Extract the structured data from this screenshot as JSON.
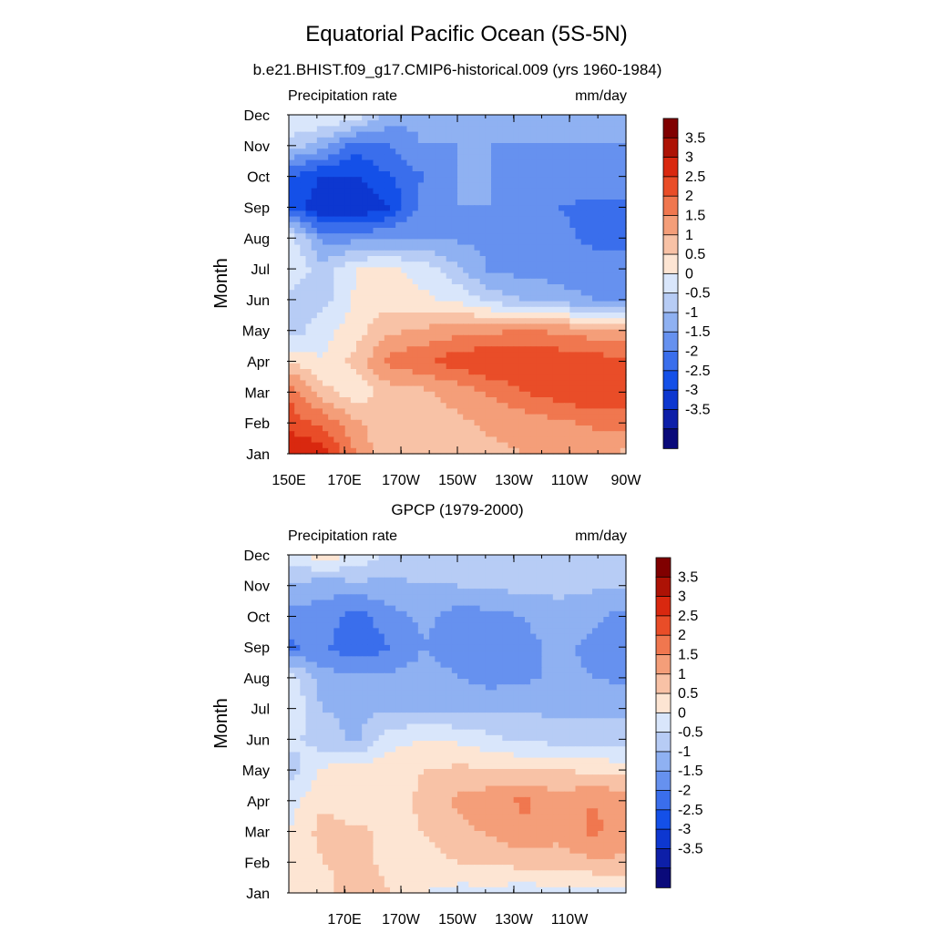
{
  "figure": {
    "title": "Equatorial Pacific Ocean (5S-5N)"
  },
  "colorbar": {
    "levels": [
      -3.5,
      -3,
      -2.5,
      -2,
      -1.5,
      -1,
      -0.5,
      0,
      0.5,
      1,
      1.5,
      2,
      2.5,
      3,
      3.5
    ],
    "labels": [
      "3.5",
      "3",
      "2.5",
      "2",
      "1.5",
      "1",
      "0.5",
      "0",
      "-0.5",
      "-1",
      "-1.5",
      "-2",
      "-2.5",
      "-3",
      "-3.5"
    ],
    "colors": [
      "#0a0a7a",
      "#0d1fa8",
      "#0d37d0",
      "#1450e8",
      "#3a6eec",
      "#6691ef",
      "#8fb1f2",
      "#b7ccf5",
      "#d9e6fb",
      "#fde5d3",
      "#f8c2a6",
      "#f49e79",
      "#f0774f",
      "#e94d28",
      "#d9280f",
      "#ad1205",
      "#800000"
    ]
  },
  "chart_data": [
    {
      "type": "heatmap",
      "title": "b.e21.BHIST.f09_g17.CMIP6-historical.009 (yrs 1960-1984)",
      "left_label": "Precipitation rate",
      "right_label": "mm/day",
      "xlabel": "",
      "ylabel": "Month",
      "x_ticks": [
        "150E",
        "170E",
        "170W",
        "150W",
        "130W",
        "110W",
        "90W"
      ],
      "y_ticks": [
        "Jan",
        "Feb",
        "Mar",
        "Apr",
        "May",
        "Jun",
        "Jul",
        "Aug",
        "Sep",
        "Oct",
        "Nov",
        "Dec"
      ],
      "x_range": [
        "150E",
        "90W"
      ],
      "grid": [
        [
          3.6,
          3.2,
          2.0,
          1.0,
          1.0,
          1.2,
          1.4,
          1.5,
          1.6,
          1.6,
          1.4
        ],
        [
          2.8,
          2.4,
          1.6,
          1.0,
          1.2,
          1.4,
          1.6,
          1.7,
          1.9,
          2.1,
          2.2
        ],
        [
          2.4,
          1.2,
          0.6,
          1.3,
          1.4,
          1.7,
          2.1,
          2.5,
          2.8,
          3.0,
          2.9
        ],
        [
          1.0,
          0.5,
          1.2,
          2.2,
          2.4,
          2.8,
          3.0,
          3.0,
          2.9,
          2.8,
          2.6
        ],
        [
          -0.3,
          0.3,
          0.8,
          1.4,
          1.6,
          1.8,
          1.9,
          2.0,
          1.9,
          1.7,
          1.6
        ],
        [
          -0.3,
          -0.2,
          0.6,
          0.8,
          0.6,
          0.4,
          -0.2,
          -0.5,
          -0.8,
          -1.0,
          -1.0
        ],
        [
          0.5,
          -0.3,
          0.5,
          0.6,
          0.3,
          -0.4,
          -1.1,
          -1.2,
          -1.2,
          -1.3,
          -1.3
        ],
        [
          0.3,
          -1.2,
          -1.2,
          -1.0,
          -1.0,
          -1.1,
          -1.1,
          -1.2,
          -1.4,
          -1.6,
          -1.6
        ],
        [
          -2.0,
          -3.0,
          -3.0,
          -2.5,
          -1.2,
          -1.0,
          -1.0,
          -1.2,
          -1.5,
          -1.6,
          -1.6
        ],
        [
          -2.0,
          -2.5,
          -2.5,
          -2.0,
          -1.5,
          -1.0,
          -1.0,
          -1.1,
          -1.2,
          -1.3,
          -1.3
        ],
        [
          -0.2,
          -0.8,
          -1.8,
          -1.5,
          -1.0,
          -1.0,
          -1.0,
          -1.0,
          -1.0,
          -1.0,
          -1.0
        ],
        [
          0.5,
          0.6,
          0.4,
          -0.8,
          -0.8,
          -0.8,
          -0.7,
          -0.6,
          -0.6,
          -0.6,
          -0.6
        ]
      ],
      "colorbar_range": [
        -3.5,
        3.5
      ]
    },
    {
      "type": "heatmap",
      "title": "GPCP (1979-2000)",
      "left_label": "Precipitation rate",
      "right_label": "mm/day",
      "xlabel": "",
      "ylabel": "Month",
      "x_ticks": [
        "170E",
        "170W",
        "150W",
        "130W",
        "110W"
      ],
      "y_ticks": [
        "Jan",
        "Feb",
        "Mar",
        "Apr",
        "May",
        "Jun",
        "Jul",
        "Aug",
        "Sep",
        "Oct",
        "Nov",
        "Dec"
      ],
      "x_range": [
        "150E",
        "90W"
      ],
      "grid": [
        [
          0.6,
          0.7,
          1.4,
          1.0,
          0.5,
          0.3,
          0.3,
          0.2,
          0.3,
          0.3,
          0.3
        ],
        [
          0.5,
          1.0,
          1.2,
          0.8,
          0.8,
          1.0,
          1.1,
          1.2,
          1.2,
          1.4,
          1.4
        ],
        [
          0.5,
          1.2,
          1.1,
          0.9,
          1.0,
          1.3,
          1.6,
          1.9,
          1.7,
          2.1,
          1.8
        ],
        [
          0.3,
          0.9,
          0.6,
          0.8,
          1.1,
          1.6,
          1.8,
          2.1,
          1.7,
          2.0,
          1.8
        ],
        [
          -0.3,
          0.6,
          0.7,
          0.8,
          1.0,
          1.1,
          1.1,
          1.0,
          1.0,
          0.9,
          0.8
        ],
        [
          0.2,
          -0.3,
          -0.6,
          0.3,
          0.5,
          0.4,
          0.1,
          -0.1,
          -0.2,
          -0.3,
          -0.3
        ],
        [
          0.5,
          -0.5,
          -0.6,
          -0.6,
          -0.6,
          -0.6,
          -0.6,
          -0.6,
          -0.6,
          -0.6,
          -0.6
        ],
        [
          0.3,
          -0.8,
          -0.9,
          -0.9,
          -0.8,
          -1.0,
          -1.2,
          -1.1,
          -0.9,
          -1.0,
          -1.1
        ],
        [
          -1.6,
          -1.4,
          -1.9,
          -1.5,
          -1.0,
          -1.2,
          -1.2,
          -1.1,
          -0.9,
          -1.1,
          -1.2
        ],
        [
          -1.2,
          -1.2,
          -1.7,
          -1.2,
          -0.9,
          -1.2,
          -1.2,
          -1.0,
          -0.8,
          -0.9,
          -1.2
        ],
        [
          -0.6,
          -0.8,
          -0.7,
          -0.6,
          -0.5,
          -0.5,
          -0.4,
          -0.3,
          -0.3,
          -0.4,
          -0.5
        ],
        [
          0.3,
          0.8,
          0.5,
          -0.2,
          -0.3,
          -0.2,
          -0.1,
          -0.1,
          -0.2,
          -0.3,
          -0.3
        ]
      ],
      "colorbar_range": [
        -3.5,
        3.5
      ]
    }
  ]
}
